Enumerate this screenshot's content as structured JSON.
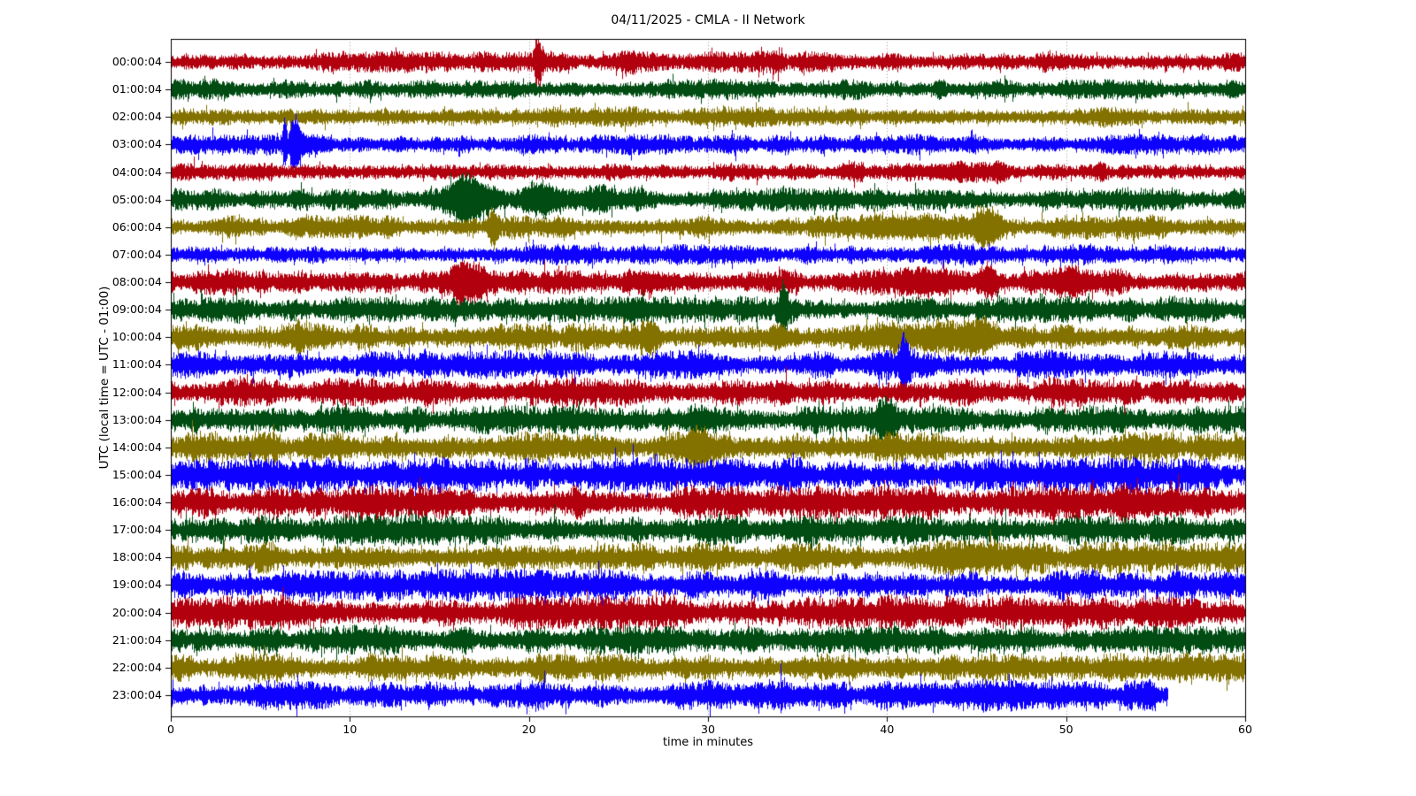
{
  "figure": {
    "title": "04/11/2025 - CMLA - II Network",
    "background": "#ffffff",
    "axis_color": "#000000"
  },
  "chart_data": {
    "type": "line",
    "subtype": "seismogram-dayplot-24-hour-helicorder",
    "title": "04/11/2025 - CMLA - II Network",
    "xlabel": "time in minutes",
    "ylabel": "UTC (local time = UTC - 01:00)",
    "xlim": [
      0,
      60
    ],
    "x_ticks": [
      0,
      10,
      20,
      30,
      40,
      50,
      60
    ],
    "grid": {
      "vertical_dotted_at_minutes": [
        10,
        20,
        30,
        40,
        50
      ],
      "color": "rgba(0,0,0,0.55)"
    },
    "legend": "none",
    "color_cycle": [
      "#B2000F",
      "#004C12",
      "#847200",
      "#0E01FF"
    ],
    "events_note": "events are [center_minute, width_minutes, extra_amplitude_px, optional_right_tail_multiplier]; base_amp is background noise half-band in px; end_minute is where the trace stops",
    "rows": [
      {
        "label": "00:00:04",
        "color": "#B2000F",
        "base_amp": 8,
        "end_minute": 60,
        "events": [
          [
            20.4,
            0.12,
            22,
            3
          ],
          [
            25.5,
            0.45,
            4
          ],
          [
            33.8,
            0.3,
            3
          ]
        ]
      },
      {
        "label": "01:00:04",
        "color": "#004C12",
        "base_amp": 8,
        "end_minute": 60,
        "events": [
          [
            59.3,
            0.4,
            6
          ]
        ]
      },
      {
        "label": "02:00:04",
        "color": "#847200",
        "base_amp": 8,
        "end_minute": 60,
        "events": []
      },
      {
        "label": "03:00:04",
        "color": "#0E01FF",
        "base_amp": 8,
        "end_minute": 60,
        "events": [
          [
            6.35,
            0.1,
            26
          ],
          [
            6.75,
            0.12,
            30,
            4
          ],
          [
            7.9,
            0.8,
            6
          ]
        ]
      },
      {
        "label": "04:00:04",
        "color": "#B2000F",
        "base_amp": 8,
        "end_minute": 60,
        "events": [
          [
            42.8,
            1.2,
            4
          ],
          [
            46.3,
            0.4,
            4
          ]
        ]
      },
      {
        "label": "05:00:04",
        "color": "#004C12",
        "base_amp": 9,
        "end_minute": 60,
        "events": [
          [
            16.3,
            0.8,
            22,
            1.6
          ],
          [
            20.6,
            1.0,
            12
          ],
          [
            24.0,
            1.8,
            4
          ]
        ]
      },
      {
        "label": "06:00:04",
        "color": "#847200",
        "base_amp": 9,
        "end_minute": 60,
        "events": [
          [
            18.0,
            0.25,
            20
          ],
          [
            40.8,
            2.2,
            7
          ],
          [
            45.6,
            0.7,
            15
          ]
        ]
      },
      {
        "label": "07:00:04",
        "color": "#0E01FF",
        "base_amp": 8,
        "end_minute": 60,
        "events": []
      },
      {
        "label": "08:00:04",
        "color": "#B2000F",
        "base_amp": 10,
        "end_minute": 60,
        "events": [
          [
            16.4,
            0.9,
            16
          ],
          [
            26.8,
            1.4,
            5
          ],
          [
            42.0,
            1.6,
            8
          ],
          [
            45.6,
            0.6,
            12
          ],
          [
            50.6,
            1.5,
            5
          ]
        ]
      },
      {
        "label": "09:00:04",
        "color": "#004C12",
        "base_amp": 10,
        "end_minute": 60,
        "events": [
          [
            25.8,
            0.8,
            5
          ],
          [
            34.2,
            0.25,
            20
          ]
        ]
      },
      {
        "label": "10:00:04",
        "color": "#847200",
        "base_amp": 11,
        "end_minute": 60,
        "events": [
          [
            7.1,
            0.25,
            10
          ],
          [
            26.8,
            0.4,
            10
          ],
          [
            33.9,
            0.4,
            8
          ],
          [
            42.5,
            2.5,
            6
          ],
          [
            45.2,
            0.8,
            8
          ]
        ]
      },
      {
        "label": "11:00:04",
        "color": "#0E01FF",
        "base_amp": 11,
        "end_minute": 60,
        "events": [
          [
            40.9,
            0.15,
            28,
            2
          ]
        ]
      },
      {
        "label": "12:00:04",
        "color": "#B2000F",
        "base_amp": 11,
        "end_minute": 60,
        "events": [
          [
            34.3,
            0.5,
            5
          ]
        ]
      },
      {
        "label": "13:00:04",
        "color": "#004C12",
        "base_amp": 11,
        "end_minute": 60,
        "events": [
          [
            29.5,
            0.5,
            8
          ],
          [
            39.9,
            0.5,
            14
          ]
        ]
      },
      {
        "label": "14:00:04",
        "color": "#847200",
        "base_amp": 12,
        "end_minute": 60,
        "events": [
          [
            29.4,
            0.8,
            12
          ]
        ]
      },
      {
        "label": "15:00:04",
        "color": "#0E01FF",
        "base_amp": 13,
        "end_minute": 60,
        "events": []
      },
      {
        "label": "16:00:04",
        "color": "#B2000F",
        "base_amp": 13,
        "end_minute": 60,
        "events": [
          [
            53.0,
            0.5,
            6
          ],
          [
            55.0,
            2.2,
            6
          ]
        ]
      },
      {
        "label": "17:00:04",
        "color": "#004C12",
        "base_amp": 12,
        "end_minute": 60,
        "events": []
      },
      {
        "label": "18:00:04",
        "color": "#847200",
        "base_amp": 12,
        "end_minute": 60,
        "events": [
          [
            44.5,
            2.0,
            6
          ]
        ]
      },
      {
        "label": "19:00:04",
        "color": "#0E01FF",
        "base_amp": 12,
        "end_minute": 60,
        "events": []
      },
      {
        "label": "20:00:04",
        "color": "#B2000F",
        "base_amp": 13,
        "end_minute": 60,
        "events": []
      },
      {
        "label": "21:00:04",
        "color": "#004C12",
        "base_amp": 11,
        "end_minute": 60,
        "events": []
      },
      {
        "label": "22:00:04",
        "color": "#847200",
        "base_amp": 11,
        "end_minute": 60,
        "events": []
      },
      {
        "label": "23:00:04",
        "color": "#0E01FF",
        "base_amp": 11,
        "end_minute": 55.7,
        "events": [
          [
            45,
            7,
            2
          ],
          [
            54.8,
            0.3,
            8
          ]
        ]
      }
    ]
  }
}
